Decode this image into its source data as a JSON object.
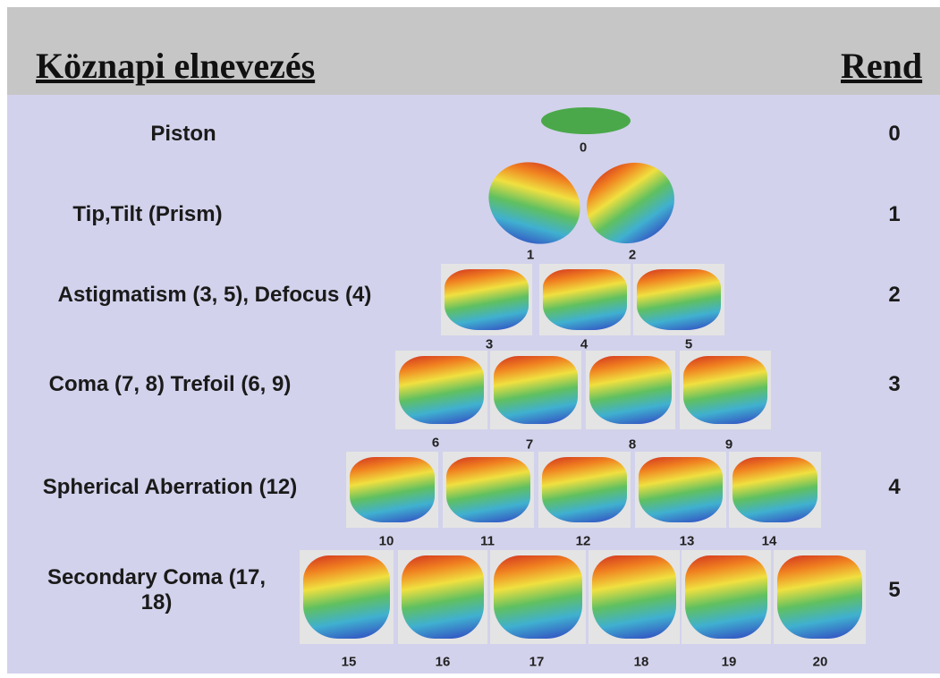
{
  "header": {
    "title": "Köznapi elnevezés",
    "order_title": "Rend"
  },
  "rows": [
    {
      "name": "Piston",
      "order": 0,
      "modes": [
        0
      ]
    },
    {
      "name": "Tip,Tilt (Prism)",
      "order": 1,
      "modes": [
        1,
        2
      ]
    },
    {
      "name": "Astigmatism (3, 5), Defocus (4)",
      "order": 2,
      "modes": [
        3,
        4,
        5
      ]
    },
    {
      "name": "Coma (7, 8) Trefoil (6, 9)",
      "order": 3,
      "modes": [
        6,
        7,
        8,
        9
      ]
    },
    {
      "name": "Spherical Aberration (12)",
      "order": 4,
      "modes": [
        10,
        11,
        12,
        13,
        14
      ]
    },
    {
      "name": "Secondary Coma (17, 18)",
      "order": 5,
      "modes": [
        15,
        16,
        17,
        18,
        19,
        20
      ]
    }
  ]
}
